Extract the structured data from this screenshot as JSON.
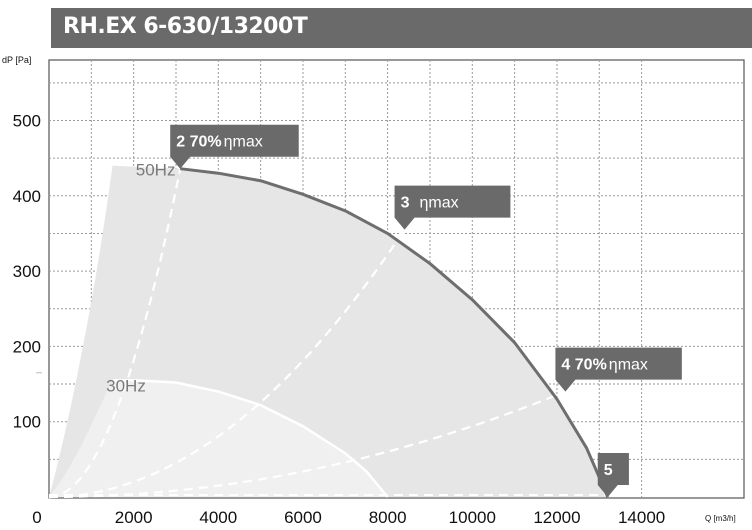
{
  "title": "RH.EX 6-630/13200T",
  "chart_data": {
    "type": "line",
    "title": "RH.EX 6-630/13200T",
    "xlabel": "Q [m3/h]",
    "ylabel": "dP [Pa]",
    "xlim": [
      0,
      15000
    ],
    "ylim": [
      0,
      560
    ],
    "xticks": [
      "0",
      "2000",
      "4000",
      "6000",
      "8000",
      "10000",
      "12000",
      "14000"
    ],
    "yticks": [
      "100",
      "200",
      "300",
      "400",
      "500"
    ],
    "grid": true,
    "colors": {
      "curve50": "#6e6e6e",
      "area": "#e6e6e6",
      "area30": "#f0f0f0",
      "marker": "#6a6a6a",
      "dash": "#ffffff"
    },
    "series": [
      {
        "name": "50Hz",
        "x": [
          3100,
          4000,
          5000,
          6000,
          7000,
          8000,
          9000,
          10000,
          11000,
          12000,
          12700,
          13200
        ],
        "y": [
          436,
          430,
          420,
          402,
          380,
          350,
          310,
          262,
          205,
          130,
          65,
          0
        ]
      },
      {
        "name": "30Hz",
        "x": [
          1500,
          2000,
          3000,
          4000,
          5000,
          6000,
          7000,
          7500,
          8000
        ],
        "y": [
          155,
          155,
          152,
          140,
          122,
          94,
          58,
          34,
          0
        ]
      }
    ],
    "speed_labels": [
      {
        "text": "50Hz",
        "x": 2050,
        "y": 435
      },
      {
        "text": "30Hz",
        "x": 1350,
        "y": 148
      }
    ],
    "system_curves": [
      {
        "x": [
          0,
          3100
        ],
        "y": [
          0,
          436
        ]
      },
      {
        "x": [
          0,
          8400
        ],
        "y": [
          0,
          355
        ]
      },
      {
        "x": [
          0,
          12200
        ],
        "y": [
          0,
          140
        ]
      },
      {
        "x": [
          0,
          13200
        ],
        "y": [
          0,
          0
        ]
      }
    ],
    "markers": [
      {
        "number": "2",
        "pct": "70%",
        "text": "ηmax",
        "x": 3100,
        "y": 436,
        "x_end": 5900
      },
      {
        "number": "3",
        "pct": "",
        "text": "ηmax",
        "x": 8400,
        "y": 355,
        "x_end": 10900
      },
      {
        "number": "4",
        "pct": "70%",
        "text": "ηmax",
        "x": 12200,
        "y": 140,
        "x_end": 14950
      },
      {
        "number": "5",
        "pct": "",
        "text": "",
        "x": 13200,
        "y": 0,
        "x_end": 13700
      }
    ]
  }
}
